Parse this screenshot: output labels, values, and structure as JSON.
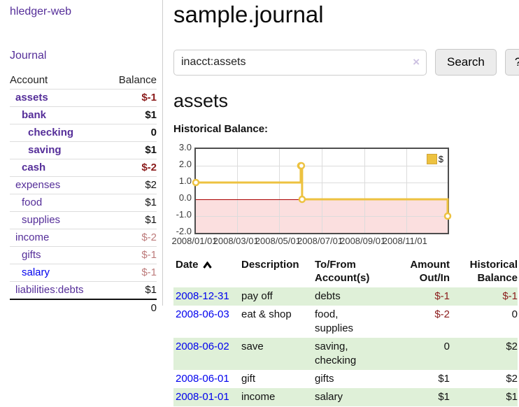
{
  "app": {
    "title": "hledger-web"
  },
  "nav": {
    "journal_label": "Journal"
  },
  "sidebar": {
    "header": {
      "account": "Account",
      "balance": "Balance"
    },
    "accounts": [
      {
        "name": "assets",
        "balance": "$-1"
      },
      {
        "name": "bank",
        "balance": "$1"
      },
      {
        "name": "checking",
        "balance": "0"
      },
      {
        "name": "saving",
        "balance": "$1"
      },
      {
        "name": "cash",
        "balance": "$-2"
      },
      {
        "name": "expenses",
        "balance": "$2"
      },
      {
        "name": "food",
        "balance": "$1"
      },
      {
        "name": "supplies",
        "balance": "$1"
      },
      {
        "name": "income",
        "balance": "$-2"
      },
      {
        "name": "gifts",
        "balance": "$-1"
      },
      {
        "name": "salary",
        "balance": "$-1"
      },
      {
        "name": "liabilities:debts",
        "balance": "$1"
      }
    ],
    "total": "0"
  },
  "main": {
    "title": "sample.journal",
    "search": {
      "value": "inacct:assets",
      "clear_icon": "×",
      "button_label": "Search",
      "help_label": "?"
    },
    "account_heading": "assets",
    "chart_label": "Historical Balance:"
  },
  "chart_data": {
    "type": "line",
    "style": "step",
    "title": "Historical Balance",
    "series": [
      {
        "name": "$",
        "color": "#EDC240",
        "points": [
          {
            "x": "2008/01/01",
            "y": 1
          },
          {
            "x": "2008/06/01",
            "y": 2
          },
          {
            "x": "2008/06/02",
            "y": 2
          },
          {
            "x": "2008/06/03",
            "y": 0
          },
          {
            "x": "2008/12/31",
            "y": -1
          }
        ]
      }
    ],
    "ylim": [
      -2,
      3
    ],
    "yticks": [
      "3.0",
      "2.0",
      "1.0",
      "0.0",
      "-1.0",
      "-2.0"
    ],
    "xticks": [
      "2008/01/01",
      "2008/03/01",
      "2008/05/01",
      "2008/07/01",
      "2008/09/01",
      "2008/11/01"
    ],
    "x_start": "2008/01/01",
    "x_end": "2008/12/31",
    "legend": {
      "label": "$",
      "position": "top-right"
    },
    "grid": true,
    "negative_region_color": "#fbdfdf",
    "zero_line_color": "#aa0000"
  },
  "register": {
    "columns": [
      "Date",
      "Description",
      "To/From Account(s)",
      "Amount Out/In",
      "Historical Balance"
    ],
    "rows": [
      {
        "date": "2008-12-31",
        "description": "pay off",
        "accounts": "debts",
        "amount": "$-1",
        "balance": "$-1"
      },
      {
        "date": "2008-06-03",
        "description": "eat & shop",
        "accounts": "food, supplies",
        "amount": "$-2",
        "balance": "0"
      },
      {
        "date": "2008-06-02",
        "description": "save",
        "accounts": "saving, checking",
        "amount": "0",
        "balance": "$2"
      },
      {
        "date": "2008-06-01",
        "description": "gift",
        "accounts": "gifts",
        "amount": "$1",
        "balance": "$2"
      },
      {
        "date": "2008-01-01",
        "description": "income",
        "accounts": "salary",
        "amount": "$1",
        "balance": "$1"
      }
    ]
  }
}
